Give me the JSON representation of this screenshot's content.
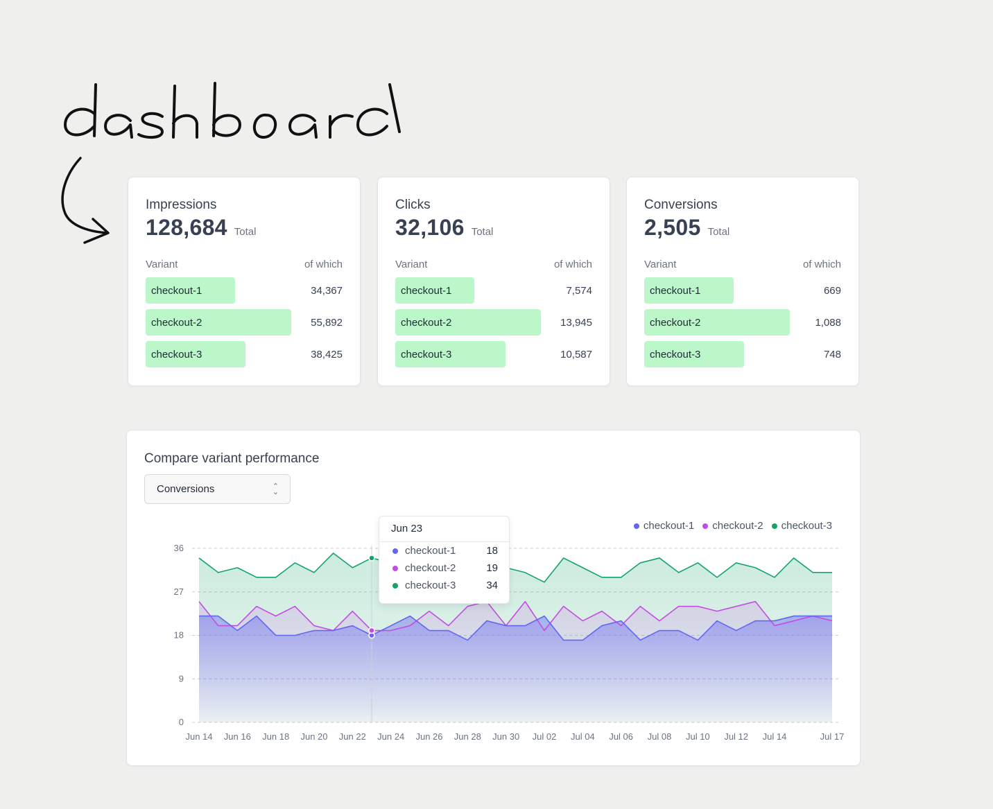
{
  "handwriting": {
    "title": "dashboard"
  },
  "colors": {
    "accent_bar": "#bbf7c8",
    "checkout-1": "#6366f1",
    "checkout-2": "#c34de3",
    "checkout-3": "#16a36a"
  },
  "kpis": [
    {
      "label": "Impressions",
      "value": "128,684",
      "total_label": "Total",
      "variant_header": "Variant",
      "share_header": "of which",
      "variants": [
        {
          "name": "checkout-1",
          "value": "34,367",
          "amount": 34367
        },
        {
          "name": "checkout-2",
          "value": "55,892",
          "amount": 55892
        },
        {
          "name": "checkout-3",
          "value": "38,425",
          "amount": 38425
        }
      ]
    },
    {
      "label": "Clicks",
      "value": "32,106",
      "total_label": "Total",
      "variant_header": "Variant",
      "share_header": "of which",
      "variants": [
        {
          "name": "checkout-1",
          "value": "7,574",
          "amount": 7574
        },
        {
          "name": "checkout-2",
          "value": "13,945",
          "amount": 13945
        },
        {
          "name": "checkout-3",
          "value": "10,587",
          "amount": 10587
        }
      ]
    },
    {
      "label": "Conversions",
      "value": "2,505",
      "total_label": "Total",
      "variant_header": "Variant",
      "share_header": "of which",
      "variants": [
        {
          "name": "checkout-1",
          "value": "669",
          "amount": 669
        },
        {
          "name": "checkout-2",
          "value": "1,088",
          "amount": 1088
        },
        {
          "name": "checkout-3",
          "value": "748",
          "amount": 748
        }
      ]
    }
  ],
  "compare": {
    "title": "Compare variant performance",
    "select_value": "Conversions"
  },
  "tooltip": {
    "date": "Jun 23",
    "rows": [
      {
        "name": "checkout-1",
        "value": "18"
      },
      {
        "name": "checkout-2",
        "value": "19"
      },
      {
        "name": "checkout-3",
        "value": "34"
      }
    ]
  },
  "chart_data": {
    "type": "area",
    "ylim": [
      0,
      36
    ],
    "yticks": [
      "0",
      "9",
      "18",
      "27",
      "36"
    ],
    "xtick_labels": [
      "Jun 14",
      "Jun 16",
      "Jun 18",
      "Jun 20",
      "Jun 22",
      "Jun 24",
      "Jun 26",
      "Jun 28",
      "Jun 30",
      "Jul 02",
      "Jul 04",
      "Jul 06",
      "Jul 08",
      "Jul 10",
      "Jul 12",
      "Jul 14",
      "Jul 17"
    ],
    "x": [
      "Jun 14",
      "Jun 15",
      "Jun 16",
      "Jun 17",
      "Jun 18",
      "Jun 19",
      "Jun 20",
      "Jun 21",
      "Jun 22",
      "Jun 23",
      "Jun 24",
      "Jun 25",
      "Jun 26",
      "Jun 27",
      "Jun 28",
      "Jun 29",
      "Jun 30",
      "Jul 01",
      "Jul 02",
      "Jul 03",
      "Jul 04",
      "Jul 05",
      "Jul 06",
      "Jul 07",
      "Jul 08",
      "Jul 09",
      "Jul 10",
      "Jul 11",
      "Jul 12",
      "Jul 13",
      "Jul 14",
      "Jul 15",
      "Jul 16",
      "Jul 17"
    ],
    "legend_position": "top-right",
    "grid": true,
    "series": [
      {
        "name": "checkout-1",
        "values": [
          22,
          22,
          19,
          22,
          18,
          18,
          19,
          19,
          20,
          18,
          20,
          22,
          19,
          19,
          17,
          21,
          20,
          20,
          22,
          17,
          17,
          20,
          21,
          17,
          19,
          19,
          17,
          21,
          19,
          21,
          21,
          22,
          22,
          22
        ]
      },
      {
        "name": "checkout-2",
        "values": [
          25,
          20,
          20,
          24,
          22,
          24,
          20,
          19,
          23,
          19,
          19,
          20,
          23,
          20,
          24,
          25,
          20,
          25,
          19,
          24,
          21,
          23,
          20,
          24,
          21,
          24,
          24,
          23,
          24,
          25,
          20,
          21,
          22,
          21
        ]
      },
      {
        "name": "checkout-3",
        "values": [
          34,
          31,
          32,
          30,
          30,
          33,
          31,
          35,
          32,
          34,
          33,
          32,
          31,
          33,
          32,
          30,
          32,
          31,
          29,
          34,
          32,
          30,
          30,
          33,
          34,
          31,
          33,
          30,
          33,
          32,
          30,
          34,
          31,
          31
        ]
      }
    ],
    "highlight_index": 9
  }
}
